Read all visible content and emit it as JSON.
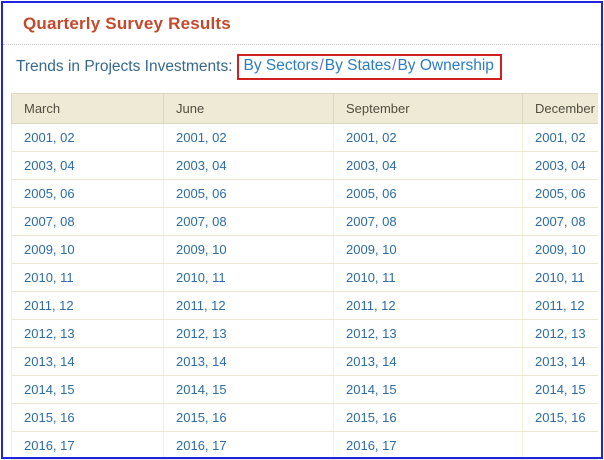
{
  "frame": {
    "border_color": "#2023df"
  },
  "header": {
    "title": "Quarterly Survey Results",
    "title_color": "#c4492c"
  },
  "nav": {
    "label": "Trends in Projects Investments:",
    "separator": "/",
    "links": [
      "By Sectors",
      "By States",
      "By Ownership"
    ],
    "link_color": "#2c7cc3",
    "separator_color": "#7468d4",
    "highlight_box_color": "#d21f1f"
  },
  "table": {
    "header_bg": "#eeead6",
    "header_text_color": "#514e41",
    "cell_link_color": "#2d6ca5",
    "columns": [
      "March",
      "June",
      "September",
      "December"
    ],
    "rows": [
      [
        "2001, 02",
        "2001, 02",
        "2001, 02",
        "2001, 02"
      ],
      [
        "2003, 04",
        "2003, 04",
        "2003, 04",
        "2003, 04"
      ],
      [
        "2005, 06",
        "2005, 06",
        "2005, 06",
        "2005, 06"
      ],
      [
        "2007, 08",
        "2007, 08",
        "2007, 08",
        "2007, 08"
      ],
      [
        "2009, 10",
        "2009, 10",
        "2009, 10",
        "2009, 10"
      ],
      [
        "2010, 11",
        "2010, 11",
        "2010, 11",
        "2010, 11"
      ],
      [
        "2011, 12",
        "2011, 12",
        "2011, 12",
        "2011, 12"
      ],
      [
        "2012, 13",
        "2012, 13",
        "2012, 13",
        "2012, 13"
      ],
      [
        "2013, 14",
        "2013, 14",
        "2013, 14",
        "2013, 14"
      ],
      [
        "2014, 15",
        "2014, 15",
        "2014, 15",
        "2014, 15"
      ],
      [
        "2015, 16",
        "2015, 16",
        "2015, 16",
        "2015, 16"
      ],
      [
        "2016, 17",
        "2016, 17",
        "2016, 17",
        ""
      ]
    ]
  }
}
